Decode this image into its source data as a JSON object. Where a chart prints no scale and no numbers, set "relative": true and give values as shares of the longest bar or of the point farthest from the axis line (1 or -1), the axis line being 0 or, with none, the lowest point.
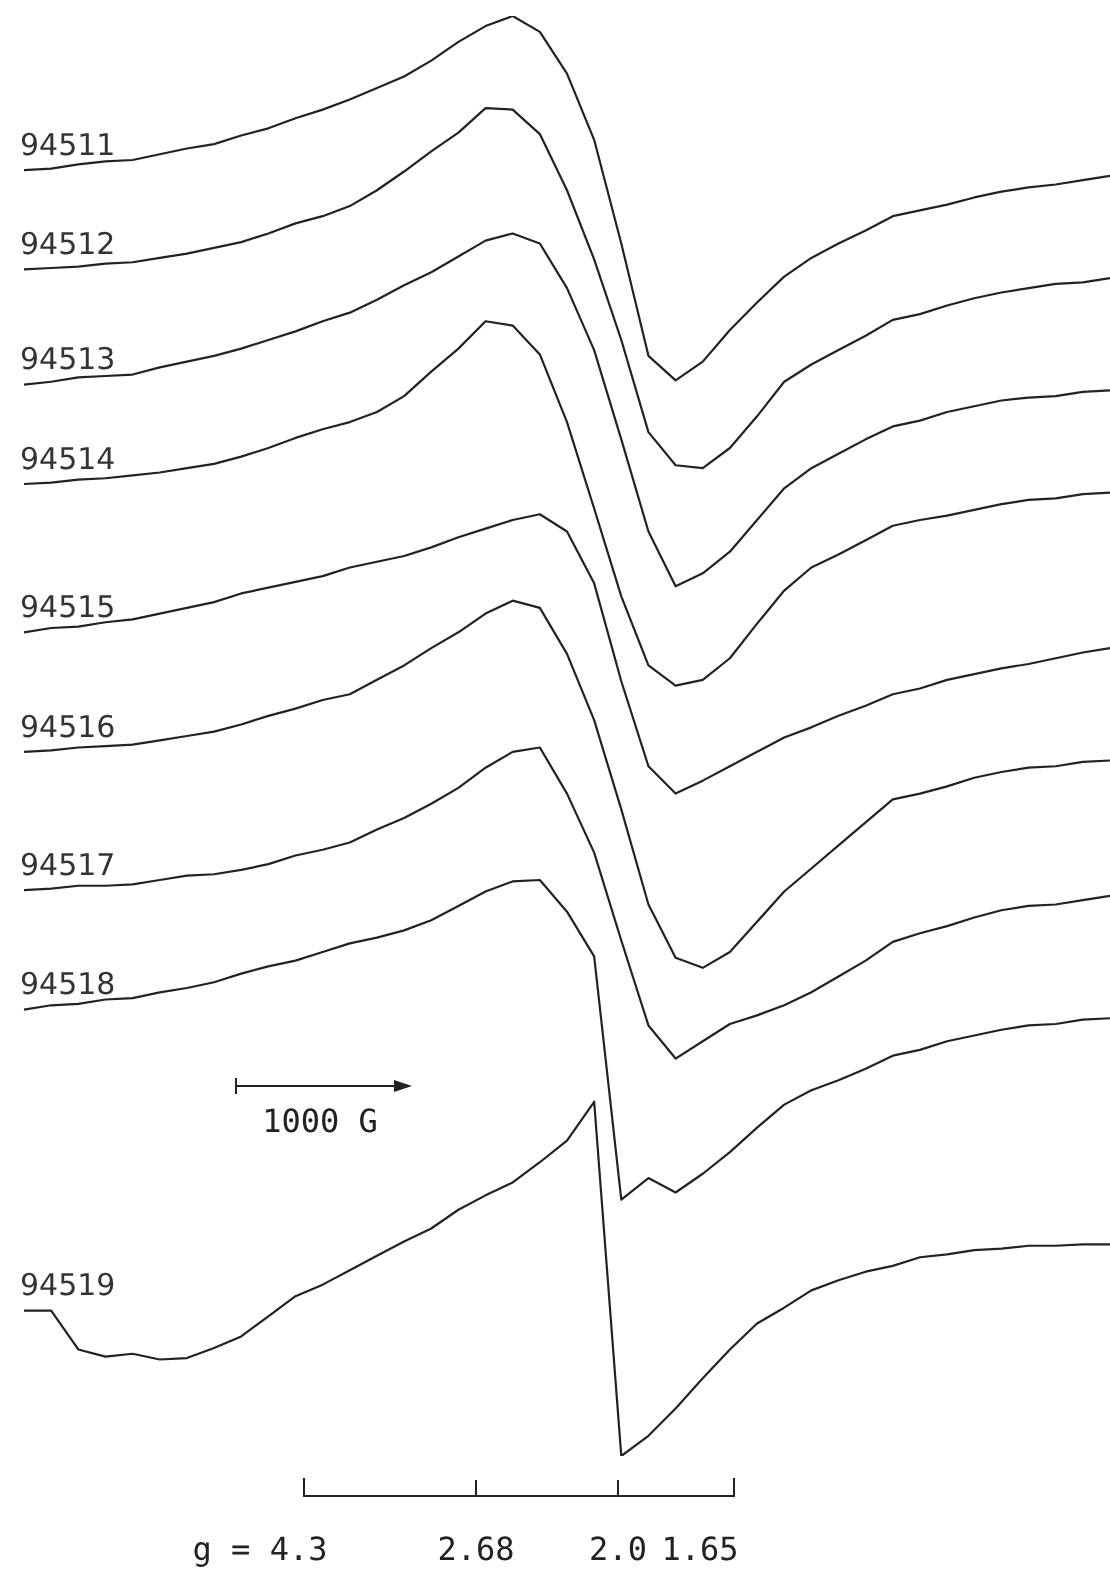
{
  "chart_data": {
    "type": "line",
    "relative": true,
    "marker": "none",
    "line_style": "solid",
    "categories": [
      null,
      null,
      null,
      null,
      null,
      null,
      null,
      null,
      null,
      null,
      null,
      null,
      null,
      null,
      null,
      null,
      null,
      null,
      null,
      null,
      null,
      null,
      null,
      null,
      null,
      null,
      null,
      null,
      null,
      null,
      null,
      null,
      null,
      null,
      null,
      null,
      null,
      null,
      null,
      null,
      null
    ],
    "annotations": [
      "1000 G",
      "g = 4.3",
      "2.68",
      "2.0",
      "1.65"
    ],
    "series": [
      {
        "name": "94511",
        "color": "#222222",
        "values": [
          0.893,
          0.894,
          0.897,
          0.899,
          0.9,
          0.904,
          0.908,
          0.911,
          0.917,
          0.922,
          0.929,
          0.935,
          0.942,
          0.95,
          0.958,
          0.969,
          0.982,
          0.993,
          1.0,
          0.989,
          0.96,
          0.914,
          0.842,
          0.764,
          0.747,
          0.76,
          0.782,
          0.801,
          0.819,
          0.832,
          0.842,
          0.851,
          0.861,
          0.865,
          0.869,
          0.874,
          0.878,
          0.881,
          0.883,
          0.886,
          0.889
        ]
      },
      {
        "name": "94512",
        "color": "#222222",
        "values": [
          0.824,
          0.825,
          0.826,
          0.828,
          0.829,
          0.832,
          0.835,
          0.839,
          0.843,
          0.849,
          0.856,
          0.861,
          0.868,
          0.879,
          0.892,
          0.906,
          0.919,
          0.936,
          0.935,
          0.918,
          0.879,
          0.831,
          0.775,
          0.711,
          0.688,
          0.686,
          0.7,
          0.722,
          0.746,
          0.758,
          0.768,
          0.778,
          0.789,
          0.793,
          0.799,
          0.804,
          0.808,
          0.811,
          0.814,
          0.815,
          0.818
        ]
      },
      {
        "name": "94513",
        "color": "#222222",
        "values": [
          0.744,
          0.746,
          0.749,
          0.75,
          0.751,
          0.756,
          0.76,
          0.764,
          0.769,
          0.775,
          0.781,
          0.788,
          0.794,
          0.803,
          0.813,
          0.822,
          0.833,
          0.844,
          0.849,
          0.842,
          0.811,
          0.768,
          0.706,
          0.642,
          0.604,
          0.613,
          0.628,
          0.65,
          0.672,
          0.686,
          0.696,
          0.706,
          0.715,
          0.719,
          0.725,
          0.729,
          0.733,
          0.735,
          0.736,
          0.739,
          0.74
        ]
      },
      {
        "name": "94514",
        "color": "#222222",
        "values": [
          0.675,
          0.676,
          0.678,
          0.679,
          0.681,
          0.683,
          0.686,
          0.689,
          0.694,
          0.7,
          0.707,
          0.713,
          0.718,
          0.725,
          0.736,
          0.753,
          0.769,
          0.788,
          0.785,
          0.765,
          0.718,
          0.658,
          0.597,
          0.549,
          0.535,
          0.539,
          0.554,
          0.578,
          0.601,
          0.617,
          0.626,
          0.636,
          0.646,
          0.65,
          0.653,
          0.657,
          0.661,
          0.664,
          0.665,
          0.668,
          0.669
        ]
      },
      {
        "name": "94515",
        "color": "#222222",
        "values": [
          0.572,
          0.575,
          0.576,
          0.579,
          0.581,
          0.585,
          0.589,
          0.593,
          0.599,
          0.603,
          0.607,
          0.611,
          0.617,
          0.621,
          0.625,
          0.631,
          0.638,
          0.644,
          0.65,
          0.654,
          0.642,
          0.606,
          0.538,
          0.479,
          0.46,
          0.469,
          0.479,
          0.489,
          0.499,
          0.506,
          0.514,
          0.521,
          0.529,
          0.533,
          0.539,
          0.543,
          0.547,
          0.55,
          0.554,
          0.558,
          0.561
        ]
      },
      {
        "name": "94516",
        "color": "#222222",
        "values": [
          0.489,
          0.49,
          0.492,
          0.493,
          0.494,
          0.497,
          0.5,
          0.503,
          0.508,
          0.514,
          0.519,
          0.525,
          0.529,
          0.539,
          0.549,
          0.561,
          0.572,
          0.585,
          0.594,
          0.589,
          0.557,
          0.511,
          0.449,
          0.383,
          0.346,
          0.339,
          0.35,
          0.371,
          0.392,
          0.408,
          0.424,
          0.44,
          0.456,
          0.46,
          0.465,
          0.471,
          0.475,
          0.478,
          0.479,
          0.482,
          0.483
        ]
      },
      {
        "name": "94517",
        "color": "#222222",
        "values": [
          0.393,
          0.394,
          0.396,
          0.396,
          0.397,
          0.4,
          0.403,
          0.404,
          0.407,
          0.411,
          0.417,
          0.421,
          0.426,
          0.435,
          0.443,
          0.453,
          0.464,
          0.478,
          0.489,
          0.492,
          0.46,
          0.419,
          0.358,
          0.299,
          0.276,
          0.288,
          0.3,
          0.306,
          0.313,
          0.322,
          0.333,
          0.344,
          0.357,
          0.363,
          0.368,
          0.374,
          0.379,
          0.382,
          0.383,
          0.386,
          0.389
        ]
      },
      {
        "name": "94518",
        "color": "#222222",
        "values": [
          0.31,
          0.313,
          0.314,
          0.317,
          0.318,
          0.322,
          0.325,
          0.329,
          0.335,
          0.34,
          0.344,
          0.35,
          0.356,
          0.36,
          0.365,
          0.372,
          0.382,
          0.392,
          0.399,
          0.4,
          0.378,
          0.347,
          0.178,
          0.193,
          0.183,
          0.196,
          0.211,
          0.228,
          0.244,
          0.254,
          0.261,
          0.269,
          0.278,
          0.282,
          0.288,
          0.292,
          0.296,
          0.299,
          0.3,
          0.303,
          0.304
        ]
      },
      {
        "name": "94519",
        "color": "#222222",
        "values": [
          0.101,
          0.101,
          0.074,
          0.069,
          0.071,
          0.067,
          0.068,
          0.075,
          0.083,
          0.097,
          0.111,
          0.119,
          0.129,
          0.139,
          0.149,
          0.158,
          0.171,
          0.181,
          0.19,
          0.204,
          0.219,
          0.246,
          0,
          0.014,
          0.033,
          0.054,
          0.074,
          0.092,
          0.103,
          0.115,
          0.122,
          0.128,
          0.132,
          0.138,
          0.14,
          0.143,
          0.144,
          0.146,
          0.146,
          0.147,
          0.147
        ]
      }
    ]
  }
}
